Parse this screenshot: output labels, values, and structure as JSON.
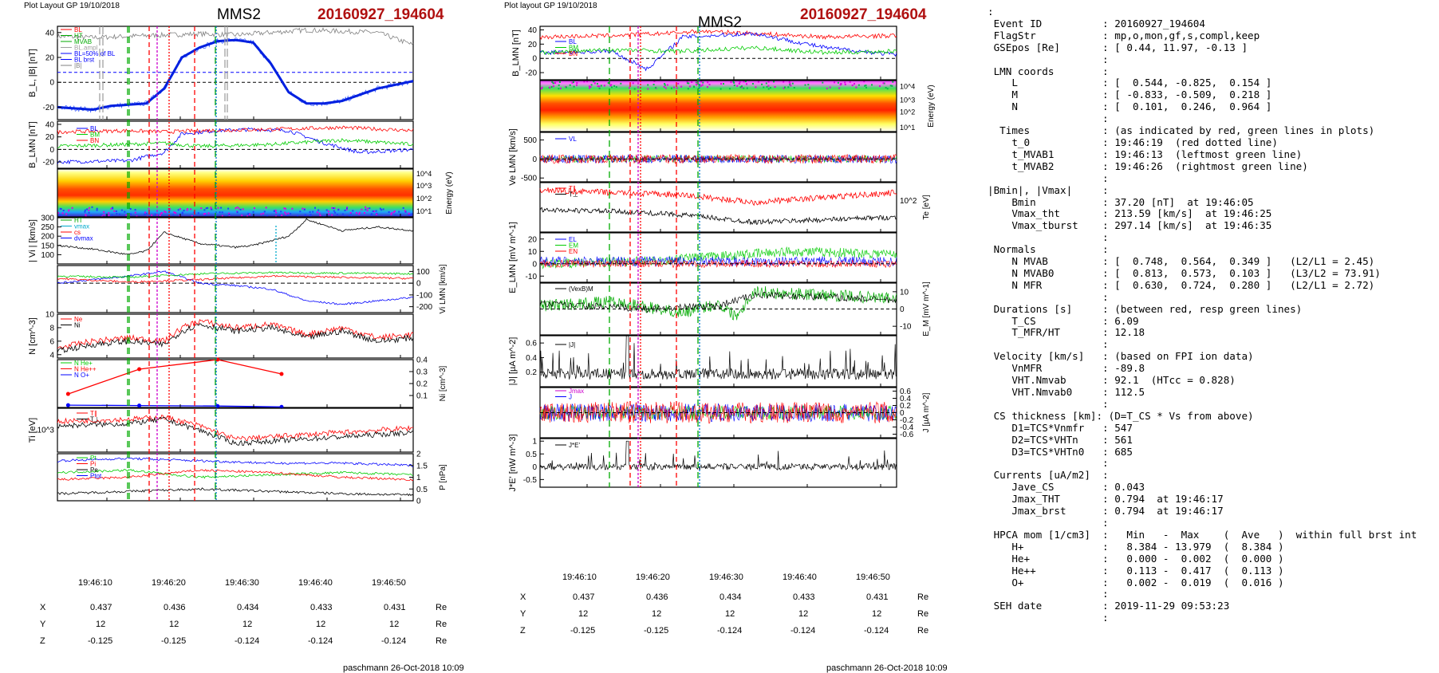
{
  "left": {
    "plot_layout": "Plot Layout GP 19/10/2018",
    "spacecraft": "MMS2",
    "event": "20160927_194604",
    "footer": "paschmann 26-Oct-2018 10:09",
    "time_ticks": [
      "19:46:10",
      "19:46:20",
      "19:46:30",
      "19:46:40",
      "19:46:50"
    ],
    "coords": {
      "labels": [
        "X",
        "Y",
        "Z"
      ],
      "unit": "Re",
      "X": [
        "0.437",
        "0.436",
        "0.434",
        "0.433",
        "0.431"
      ],
      "Y": [
        "12",
        "12",
        "12",
        "12",
        "12"
      ],
      "Z": [
        "-0.125",
        "-0.125",
        "-0.124",
        "-0.124",
        "-0.124"
      ]
    }
  },
  "right": {
    "plot_layout": "Plot layout GP 19/10/2018",
    "spacecraft": "MMS2",
    "event": "20160927_194604",
    "footer": "paschmann 26-Oct-2018 10:09",
    "time_ticks": [
      "19:46:10",
      "19:46:20",
      "19:46:30",
      "19:46:40",
      "19:46:50"
    ],
    "coords": {
      "labels": [
        "X",
        "Y",
        "Z"
      ],
      "unit": "Re",
      "X": [
        "0.437",
        "0.436",
        "0.434",
        "0.433",
        "0.431"
      ],
      "Y": [
        "12",
        "12",
        "12",
        "12",
        "12"
      ],
      "Z": [
        "-0.125",
        "-0.125",
        "-0.124",
        "-0.124",
        "-0.124"
      ]
    }
  },
  "info_text": ":\n Event ID          : 20160927_194604\n FlagStr           : mp,o,mon,gf,s,compl,keep\n GSEpos [Re]       : [ 0.44, 11.97, -0.13 ]\n                   :\n LMN coords        :\n    L              : [  0.544, -0.825,  0.154 ]\n    M              : [ -0.833, -0.509,  0.218 ]\n    N              : [  0.101,  0.246,  0.964 ]\n                   :\n  Times            : (as indicated by red, green lines in plots)\n    t_0            : 19:46:19  (red dotted line)\n    t_MVAB1        : 19:46:13  (leftmost green line)\n    t_MVAB2        : 19:46:26  (rightmost green line)\n                   :\n|Bmin|, |Vmax|     :\n    Bmin           : 37.20 [nT]  at 19:46:05\n    Vmax_tht       : 213.59 [km/s]  at 19:46:25\n    Vmax_tburst    : 297.14 [km/s]  at 19:46:35\n                   :\n Normals           :\n    N MVAB         : [  0.748,  0.564,  0.349 ]   (L2/L1 = 2.45)\n    N MVAB0        : [  0.813,  0.573,  0.103 ]   (L3/L2 = 73.91)\n    N MFR          : [  0.630,  0.724,  0.280 ]   (L2/L1 = 2.72)\n                   :\n Durations [s]     : (between red, resp green lines)\n    T_CS           : 6.09\n    T_MFR/HT       : 12.18\n                   :\n Velocity [km/s]   : (based on FPI ion data)\n    VnMFR          : -89.8\n    VHT.Nmvab      : 92.1  (HTcc = 0.828)\n    VHT.Nmvab0     : 112.5\n                   :\n CS thickness [km]: (D=T_CS * Vs from above)\n    D1=TCS*Vnmfr   : 547\n    D2=TCS*VHTn    : 561\n    D3=TCS*VHTn0   : 685\n                   :\n Currents [uA/m2]  :\n    Jave_CS        : 0.043\n    Jmax_THT       : 0.794  at 19:46:17\n    Jmax_brst      : 0.794  at 19:46:17\n                   :\n HPCA mom [1/cm3]  :   Min   -  Max    (  Ave   )  within full brst int\n    H+             :   8.384 - 13.979  (  8.384 )\n    He+            :   0.000 -  0.002  (  0.000 )\n    He++           :   0.113 -  0.417  (  0.113 )\n    O+             :   0.002 -  0.019  (  0.016 )\n                   :\n SEH date          : 2019-11-29 09:53:23\n                   :",
  "chart_data": [
    {
      "type": "line",
      "panel": "left-1",
      "ylabel": "B_L, |B| [nT]",
      "ylim": [
        -30,
        45
      ],
      "yticks": [
        -20,
        0,
        20,
        40
      ],
      "legend": [
        "BL",
        "HT",
        "MVAB",
        "BL.ampl",
        "BL=50% of BL",
        "BL brst",
        "|B|"
      ],
      "series": [
        {
          "name": "BL brst",
          "color": "#0000ff",
          "x": [
            0,
            0.1,
            0.15,
            0.2,
            0.25,
            0.3,
            0.35,
            0.4,
            0.45,
            0.5,
            0.55,
            0.6,
            0.65,
            0.7,
            0.75,
            0.8,
            0.85,
            0.9,
            0.95,
            1.0
          ],
          "y": [
            -20,
            -22,
            -19,
            -18,
            -17,
            -5,
            20,
            28,
            33,
            34,
            32,
            15,
            -8,
            -17,
            -17,
            -15,
            -10,
            -5,
            -2,
            1
          ]
        },
        {
          "name": "|B|",
          "color": "#808080",
          "x": [
            0,
            0.1,
            0.2,
            0.3,
            0.4,
            0.5,
            0.6,
            0.7,
            0.8,
            0.9,
            1.0
          ],
          "y": [
            37,
            36,
            37,
            38,
            39,
            38,
            40,
            42,
            41,
            40,
            30
          ]
        }
      ],
      "hlines": [
        0,
        8
      ]
    },
    {
      "type": "line",
      "panel": "left-2",
      "ylabel": "B_LMN [nT]",
      "ylim": [
        -30,
        45
      ],
      "yticks": [
        -20,
        0,
        20,
        40
      ],
      "legend": [
        "BL",
        "BM",
        "BN"
      ],
      "series": [
        {
          "name": "BL",
          "color": "#0000ff",
          "x": [
            0,
            0.2,
            0.3,
            0.35,
            0.45,
            0.55,
            0.65,
            0.75,
            0.85,
            1.0
          ],
          "y": [
            -20,
            -18,
            -5,
            25,
            30,
            32,
            30,
            10,
            -5,
            0
          ]
        },
        {
          "name": "BM",
          "color": "#00cc00",
          "x": [
            0,
            0.2,
            0.3,
            0.4,
            0.6,
            0.8,
            1.0
          ],
          "y": [
            5,
            8,
            10,
            5,
            8,
            15,
            8
          ]
        },
        {
          "name": "BN",
          "color": "#ff0000",
          "x": [
            0,
            0.2,
            0.3,
            0.4,
            0.6,
            0.8,
            1.0
          ],
          "y": [
            28,
            30,
            28,
            30,
            32,
            35,
            30
          ]
        }
      ]
    },
    {
      "type": "heatmap",
      "panel": "left-3",
      "ylabel": "Energy (eV)",
      "ytick_labels": [
        "10^1",
        "10^2",
        "10^3",
        "10^4"
      ]
    },
    {
      "type": "line",
      "panel": "left-4",
      "ylabel": "| Vi | [km/s]",
      "ylim": [
        50,
        300
      ],
      "yticks": [
        100,
        150,
        200,
        250,
        300
      ],
      "legend": [
        "HT",
        "vmax",
        "cs",
        "dvmax"
      ],
      "series": [
        {
          "name": "|Vi|",
          "color": "#000000",
          "x": [
            0,
            0.1,
            0.2,
            0.25,
            0.3,
            0.4,
            0.5,
            0.55,
            0.65,
            0.7,
            0.8,
            0.9,
            1.0
          ],
          "y": [
            150,
            130,
            100,
            120,
            220,
            160,
            140,
            150,
            200,
            290,
            230,
            250,
            230
          ]
        }
      ]
    },
    {
      "type": "line",
      "panel": "left-5",
      "ylabel": "Vi LMN [km/s]",
      "ylim": [
        -250,
        150
      ],
      "yticks": [
        -200,
        -100,
        0,
        100
      ],
      "series": [
        {
          "name": "VL",
          "color": "#0000ff",
          "x": [
            0,
            0.2,
            0.3,
            0.4,
            0.5,
            0.6,
            0.7,
            0.8,
            1.0
          ],
          "y": [
            0,
            60,
            100,
            0,
            -20,
            -50,
            -150,
            -180,
            -120
          ]
        },
        {
          "name": "VM",
          "color": "#00cc00",
          "x": [
            0,
            0.2,
            0.4,
            0.6,
            0.8,
            1.0
          ],
          "y": [
            60,
            50,
            80,
            90,
            85,
            80
          ]
        },
        {
          "name": "VN",
          "color": "#ff0000",
          "x": [
            0,
            0.2,
            0.4,
            0.6,
            0.8,
            1.0
          ],
          "y": [
            40,
            10,
            30,
            60,
            50,
            40
          ]
        }
      ],
      "hlines": [
        0
      ]
    },
    {
      "type": "line",
      "panel": "left-6",
      "ylabel": "N [cm^-3]",
      "ylim": [
        3.5,
        10
      ],
      "yticks": [
        4,
        6,
        8,
        10
      ],
      "legend": [
        "Ne",
        "Ni"
      ],
      "series": [
        {
          "name": "Ne",
          "color": "#ff0000",
          "x": [
            0,
            0.1,
            0.2,
            0.3,
            0.35,
            0.4,
            0.5,
            0.6,
            0.7,
            0.8,
            0.9,
            1.0
          ],
          "y": [
            5,
            6,
            6.5,
            6,
            8,
            9,
            8,
            8.5,
            7,
            8,
            6.5,
            7
          ]
        },
        {
          "name": "Ni",
          "color": "#000000",
          "x": [
            0,
            0.1,
            0.2,
            0.3,
            0.35,
            0.4,
            0.5,
            0.6,
            0.7,
            0.8,
            0.9,
            1.0
          ],
          "y": [
            4.5,
            5.5,
            6,
            5.5,
            7.5,
            8.5,
            7.5,
            8,
            6.5,
            7.5,
            6,
            6.5
          ]
        }
      ]
    },
    {
      "type": "line",
      "panel": "left-7",
      "ylabel": "Ni [cm^-3]",
      "ylim": [
        0,
        0.4
      ],
      "yticks": [
        0.1,
        0.2,
        0.3,
        0.4
      ],
      "legend": [
        "N He+",
        "N He++",
        "N O+"
      ],
      "series": [
        {
          "name": "N He++",
          "color": "#ff0000",
          "x": [
            0.03,
            0.23,
            0.45,
            0.63
          ],
          "y": [
            0.113,
            0.32,
            0.4,
            0.28
          ]
        },
        {
          "name": "N O+",
          "color": "#0000ff",
          "x": [
            0.03,
            0.23,
            0.45,
            0.63
          ],
          "y": [
            0.019,
            0.016,
            0.012,
            0.005
          ]
        }
      ]
    },
    {
      "type": "line",
      "panel": "left-8",
      "ylabel": "Ti [eV]",
      "yticks_labels": [
        "10^3"
      ],
      "legend": [
        "T∥",
        "T⊥"
      ],
      "series": [
        {
          "name": "T∥",
          "color": "#ff0000",
          "x": [
            0,
            0.2,
            0.3,
            0.4,
            0.5,
            0.7,
            0.9,
            1.0
          ],
          "y": [
            0.7,
            0.75,
            0.8,
            0.6,
            0.3,
            0.4,
            0.5,
            0.55
          ]
        },
        {
          "name": "T⊥",
          "color": "#000000",
          "x": [
            0,
            0.2,
            0.3,
            0.4,
            0.5,
            0.7,
            0.9,
            1.0
          ],
          "y": [
            0.6,
            0.65,
            0.75,
            0.5,
            0.2,
            0.3,
            0.4,
            0.45
          ]
        }
      ]
    },
    {
      "type": "line",
      "panel": "left-9",
      "ylabel": "P [nPa]",
      "ylim": [
        0,
        2.0
      ],
      "yticks": [
        0.0,
        0.5,
        1.0,
        1.5,
        2.0
      ],
      "legend": [
        "Pt",
        "Pi",
        "Pe",
        "Ptot"
      ],
      "series": [
        {
          "name": "Ptot",
          "color": "#0000ff",
          "x": [
            0,
            0.2,
            0.4,
            0.6,
            0.8,
            1.0
          ],
          "y": [
            1.7,
            1.8,
            1.7,
            1.6,
            1.6,
            1.5
          ]
        },
        {
          "name": "PB",
          "color": "#00cc00",
          "x": [
            0,
            0.2,
            0.4,
            0.6,
            0.8,
            1.0
          ],
          "y": [
            1.2,
            1.3,
            1.0,
            1.1,
            1.2,
            1.1
          ]
        },
        {
          "name": "Pi",
          "color": "#ff0000",
          "x": [
            0,
            0.2,
            0.4,
            0.6,
            0.8,
            1.0
          ],
          "y": [
            0.9,
            1.0,
            1.3,
            1.2,
            1.0,
            0.9
          ]
        },
        {
          "name": "Pe",
          "color": "#000000",
          "x": [
            0,
            0.2,
            0.4,
            0.6,
            0.8,
            1.0
          ],
          "y": [
            0.3,
            0.4,
            0.5,
            0.4,
            0.3,
            0.25
          ]
        }
      ]
    },
    {
      "type": "line",
      "panel": "right-1",
      "ylabel": "B_LMN [nT]",
      "ylim": [
        -30,
        45
      ],
      "yticks": [
        -20,
        0,
        20,
        40
      ],
      "legend": [
        "BL",
        "BM",
        "BN"
      ]
    },
    {
      "type": "heatmap",
      "panel": "right-2",
      "ylabel": "Energy (eV)",
      "ytick_labels": [
        "10^1",
        "10^2",
        "10^3",
        "10^4"
      ]
    },
    {
      "type": "line",
      "panel": "right-3",
      "ylabel": "Ve LMN [km/s]",
      "ylim": [
        -600,
        700
      ],
      "yticks": [
        -500,
        0,
        500
      ],
      "legend": [
        "VL"
      ]
    },
    {
      "type": "line",
      "panel": "right-4",
      "ylabel": "Te [eV]",
      "yticks_labels": [
        "10^2"
      ],
      "legend": [
        "T∥",
        "T⊥"
      ]
    },
    {
      "type": "line",
      "panel": "right-5",
      "ylabel": "E_LMN [mV m^-1]",
      "ylim": [
        -15,
        25
      ],
      "yticks": [
        -10,
        0,
        10,
        20
      ],
      "legend": [
        "EL",
        "EM",
        "EN"
      ]
    },
    {
      "type": "line",
      "panel": "right-6",
      "ylabel": "E_M [mV m^-1]",
      "ylim": [
        -15,
        15
      ],
      "yticks": [
        -10,
        0,
        10
      ],
      "legend": [
        "(VexB)M"
      ]
    },
    {
      "type": "line",
      "panel": "right-7",
      "ylabel": "|J| [µA m^-2]",
      "ylim": [
        0,
        0.7
      ],
      "yticks": [
        0.2,
        0.4,
        0.6
      ],
      "legend": [
        "|J|"
      ]
    },
    {
      "type": "line",
      "panel": "right-8",
      "ylabel": "J [µA m^-2]",
      "ylim": [
        -0.7,
        0.7
      ],
      "yticks": [
        -0.6,
        -0.4,
        -0.2,
        0.0,
        0.2,
        0.4,
        0.6
      ],
      "legend": [
        "Jmax",
        "J"
      ]
    },
    {
      "type": "line",
      "panel": "right-9",
      "ylabel": "J*E' [nW m^-3]",
      "ylim": [
        -0.8,
        1.1
      ],
      "yticks": [
        -0.5,
        0.0,
        0.5,
        1.0
      ],
      "legend": [
        "J*E'"
      ]
    }
  ],
  "colors": {
    "event": "#b01010",
    "red": "#ff0000",
    "green": "#00cc00",
    "blue": "#0000ff",
    "gray": "#808080"
  }
}
